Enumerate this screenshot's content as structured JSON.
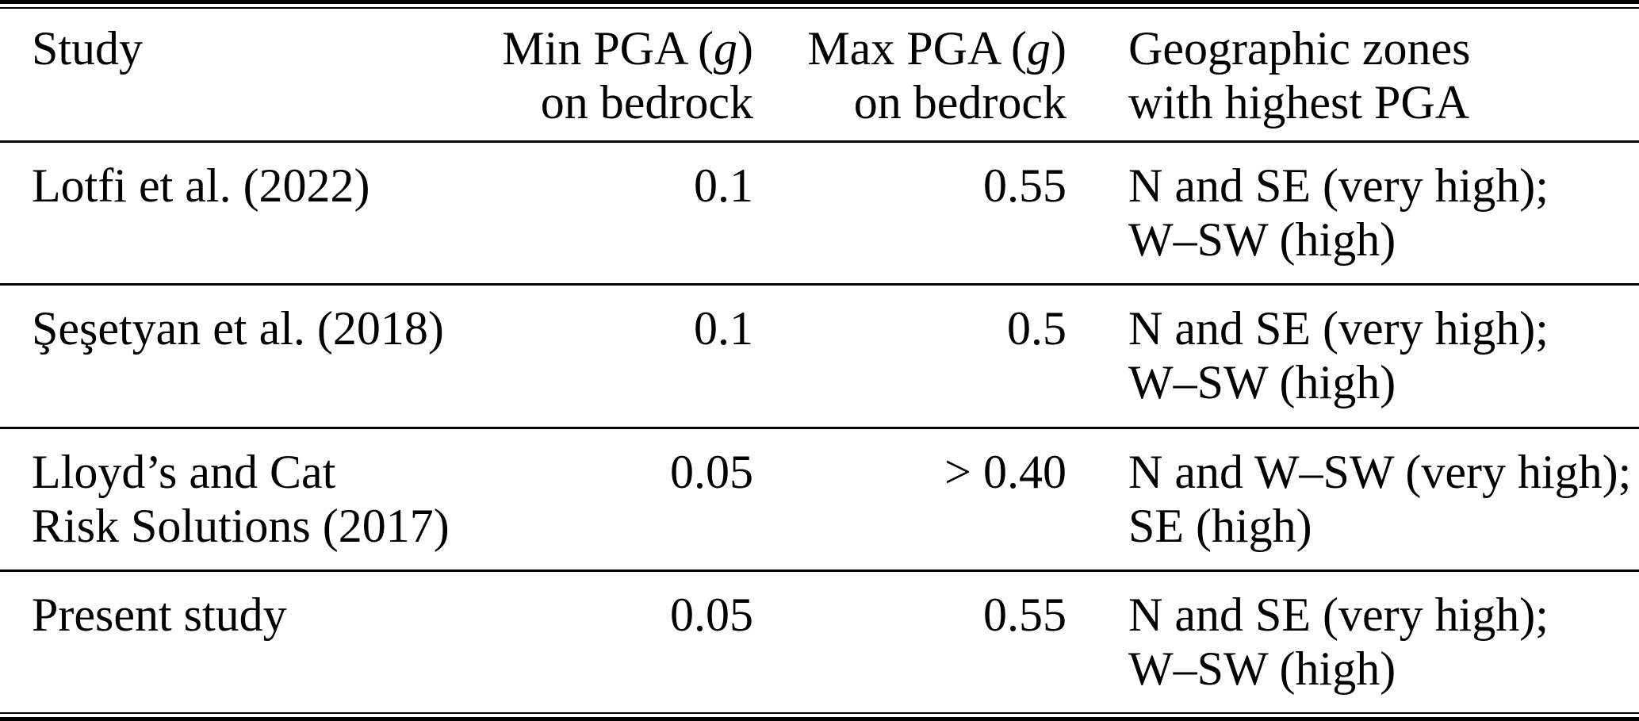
{
  "table": {
    "header": {
      "study": "Study",
      "min_pga": {
        "prefix": "Min PGA (",
        "unit": "g",
        "suffix": ")",
        "line2": "on bedrock"
      },
      "max_pga": {
        "prefix": "Max PGA (",
        "unit": "g",
        "suffix": ")",
        "line2": "on bedrock"
      },
      "zones": {
        "line1": "Geographic zones",
        "line2": "with highest PGA"
      }
    },
    "rows": [
      {
        "study_line1": "Lotfi et al. (2022)",
        "study_line2": "",
        "min_pga": "0.1",
        "max_pga": "0.55",
        "zones_line1": "N and SE (very high);",
        "zones_line2": "W–SW (high)"
      },
      {
        "study_line1": "Şeşetyan et al. (2018)",
        "study_line2": "",
        "min_pga": "0.1",
        "max_pga": "0.5",
        "zones_line1": "N and SE (very high);",
        "zones_line2": "W–SW (high)"
      },
      {
        "study_line1": "Lloyd’s and Cat",
        "study_line2": "Risk Solutions (2017)",
        "min_pga": "0.05",
        "max_pga": "> 0.40",
        "zones_line1": "N and W–SW (very high);",
        "zones_line2": "SE (high)"
      },
      {
        "study_line1": "Present study",
        "study_line2": "",
        "min_pga": "0.05",
        "max_pga": "0.55",
        "zones_line1": "N and SE (very high);",
        "zones_line2": "W–SW (high)"
      }
    ],
    "colors": {
      "text": "#000000",
      "background": "#ffffff",
      "rule": "#000000"
    }
  }
}
